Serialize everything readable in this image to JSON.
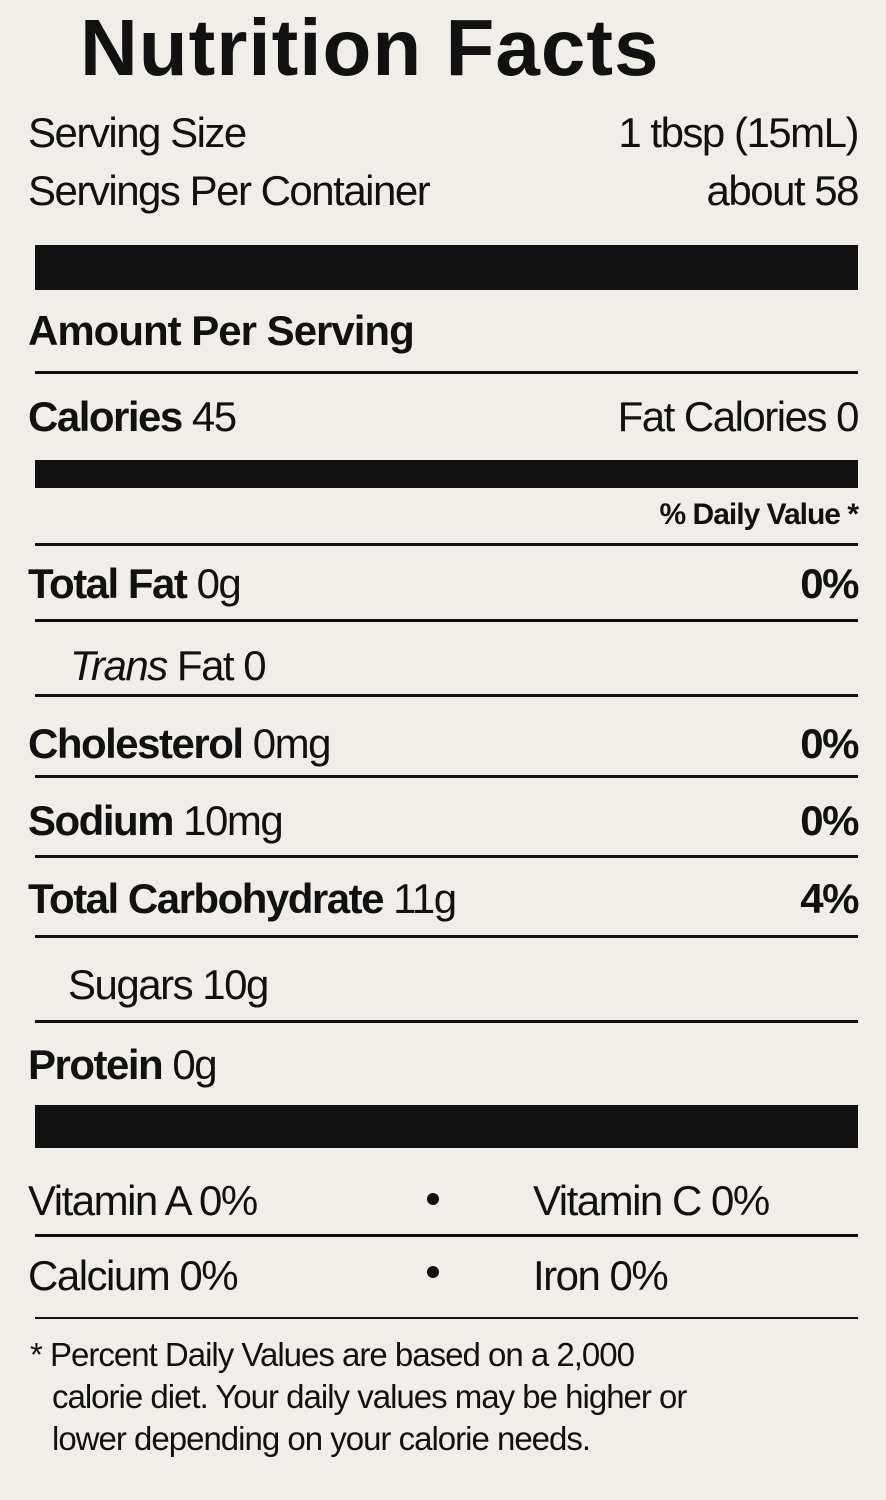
{
  "header": {
    "title": "Nutrition Facts",
    "serving_size": {
      "label": "Serving Size",
      "value": "1 tbsp (15mL)"
    },
    "servings_per_container": {
      "label": "Servings Per Container",
      "value": "about 58"
    }
  },
  "amount_per_serving": "Amount Per Serving",
  "calories": {
    "label": "Calories",
    "value": "45",
    "fat_calories": "Fat Calories 0"
  },
  "daily_value_header": "% Daily Value *",
  "nutrients": [
    {
      "label": "Total Fat",
      "amount": "0g",
      "dv": "0%"
    },
    {
      "label_italic": "Trans",
      "label": "Fat 0"
    },
    {
      "label": "Cholesterol",
      "amount": "0mg",
      "dv": "0%"
    },
    {
      "label": "Sodium",
      "amount": "10mg",
      "dv": "0%"
    },
    {
      "label": "Total Carbohydrate",
      "amount": "11g",
      "dv": "4%"
    },
    {
      "label": "Sugars 10g"
    },
    {
      "label": "Protein",
      "amount": "0g"
    }
  ],
  "vitamins": [
    [
      "Vitamin A 0%",
      "Vitamin C 0%"
    ],
    [
      "Calcium 0%",
      "Iron 0%"
    ]
  ],
  "footnote": [
    "* Percent Daily Values are based on a 2,000",
    "calorie diet. Your daily values may be higher or",
    "lower depending on your calorie needs."
  ]
}
